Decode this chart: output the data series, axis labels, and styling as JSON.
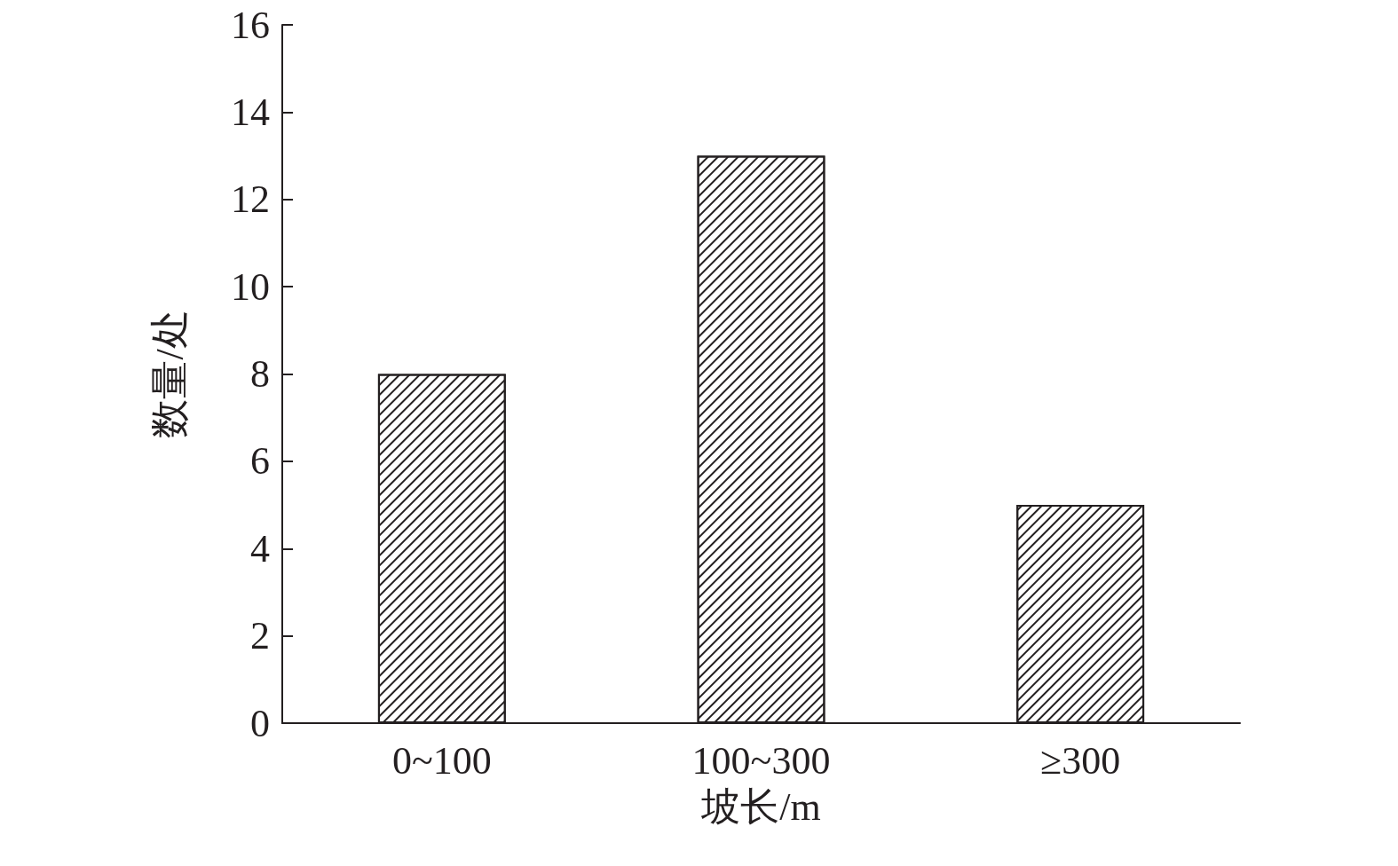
{
  "chart_data": {
    "type": "bar",
    "xlabel": "坡长/m",
    "ylabel": "数量/处",
    "categories": [
      "0~100",
      "100~300",
      "≥300"
    ],
    "values": [
      8,
      13,
      5
    ],
    "color": "#ffffff",
    "ylim": [
      0,
      16
    ],
    "yticks": [
      0,
      2,
      4,
      6,
      8,
      10,
      12,
      14,
      16
    ],
    "grid": false
  }
}
